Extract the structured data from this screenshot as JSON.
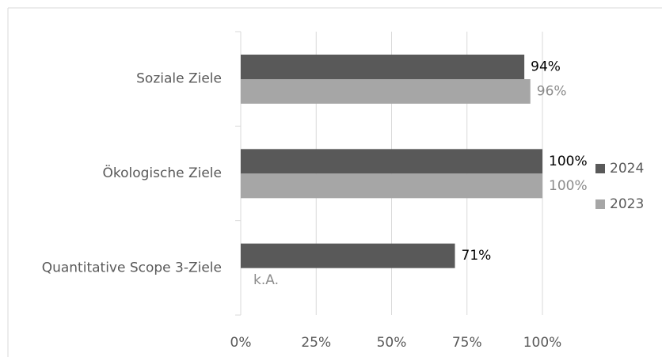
{
  "chart_data": {
    "type": "bar",
    "orientation": "horizontal",
    "categories": [
      "Soziale Ziele",
      "Ökologische Ziele",
      "Quantitative Scope 3-Ziele"
    ],
    "series": [
      {
        "name": "2024",
        "color": "#595959",
        "values": [
          94,
          100,
          71
        ],
        "value_labels": [
          "94%",
          "100%",
          "71%"
        ]
      },
      {
        "name": "2023",
        "color": "#a6a6a6",
        "values": [
          96,
          100,
          null
        ],
        "value_labels": [
          "96%",
          "100%",
          "k.A."
        ]
      }
    ],
    "xlim": [
      0,
      100
    ],
    "xticks": [
      {
        "value": 0,
        "label": "0%"
      },
      {
        "value": 25,
        "label": "25%"
      },
      {
        "value": 50,
        "label": "50%"
      },
      {
        "value": 75,
        "label": "75%"
      },
      {
        "value": 100,
        "label": "100%"
      }
    ],
    "grid": true,
    "legend": "right"
  }
}
